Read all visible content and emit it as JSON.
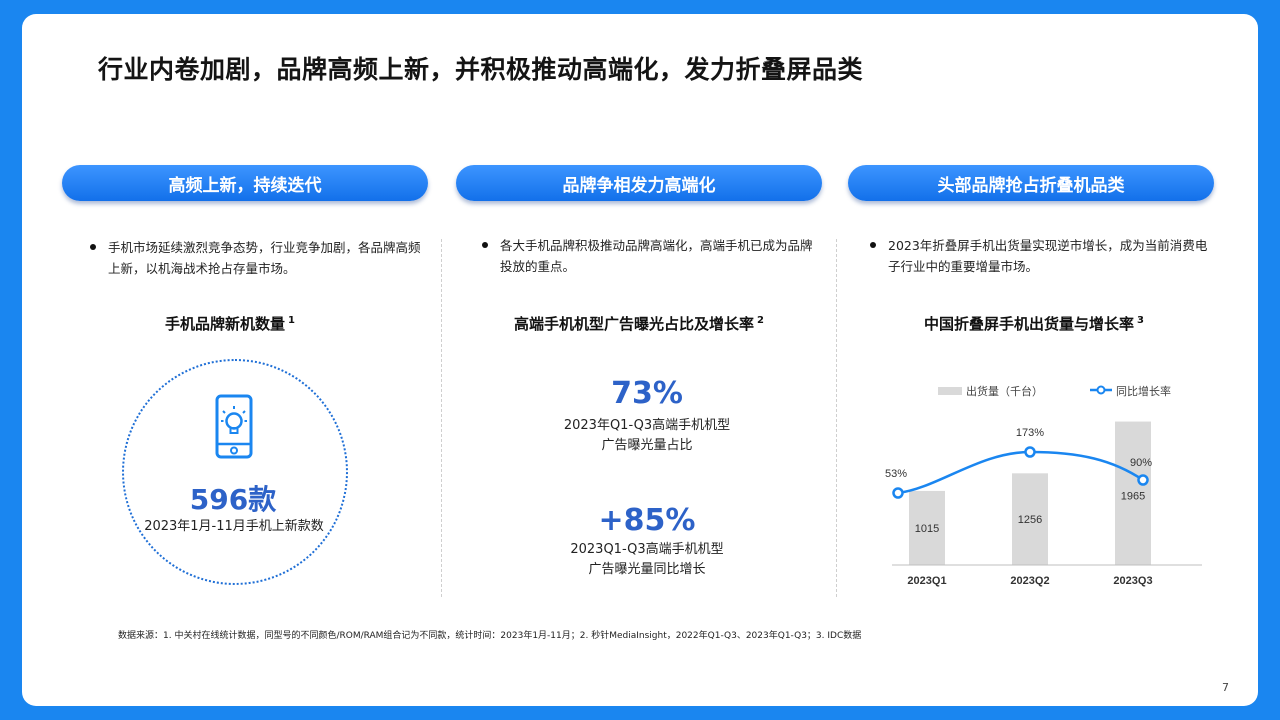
{
  "title": "行业内卷加剧，品牌高频上新，并积极推动高端化，发力折叠屏品类",
  "columns": [
    {
      "heading": "高频上新，持续迭代",
      "bullet": "手机市场延续激烈竞争态势，行业竞争加剧，各品牌高频上新，以机海战术抢占存量市场。",
      "subtitle": "手机品牌新机数量",
      "sup": "1",
      "icon": "smartphone-lightbulb-icon",
      "stat_value": "596款",
      "stat_caption": "2023年1月-11月手机上新款数"
    },
    {
      "heading": "品牌争相发力高端化",
      "bullet": "各大手机品牌积极推动品牌高端化，高端手机已成为品牌投放的重点。",
      "subtitle": "高端手机机型广告曝光占比及增长率",
      "sup": "2",
      "stat1_value": "73%",
      "stat1_caption_line1": "2023年Q1-Q3高端手机机型",
      "stat1_caption_line2": "广告曝光量占比",
      "stat2_value": "+85%",
      "stat2_caption_line1": "2023Q1-Q3高端手机机型",
      "stat2_caption_line2": "广告曝光量同比增长"
    },
    {
      "heading": "头部品牌抢占折叠机品类",
      "bullet": "2023年折叠屏手机出货量实现逆市增长，成为当前消费电子行业中的重要增量市场。",
      "subtitle": "中国折叠屏手机出货量与增长率",
      "sup": "3"
    }
  ],
  "chart_data": {
    "type": "bar",
    "categories": [
      "2023Q1",
      "2023Q2",
      "2023Q3"
    ],
    "series": [
      {
        "name": "出货量（千台）",
        "kind": "bar",
        "values": [
          1015,
          1256,
          1965
        ],
        "color": "#d9d9d9"
      },
      {
        "name": "同比增长率",
        "kind": "line",
        "values": [
          53,
          173,
          90
        ],
        "labels": [
          "53%",
          "173%",
          "90%"
        ],
        "color": "#1a86f0"
      }
    ],
    "title": "中国折叠屏手机出货量与增长率",
    "legend": "top",
    "grid": false
  },
  "footnote": "数据来源：1. 中关村在线统计数据，同型号的不同颜色/ROM/RAM组合记为不同款，统计时间：2023年1月-11月；2. 秒针MediaInsight，2022年Q1-Q3、2023年Q1-Q3；3. IDC数据",
  "page_number": "7",
  "colors": {
    "accent": "#1a86f0",
    "stat": "#2d62c8",
    "bar": "#d9d9d9"
  }
}
